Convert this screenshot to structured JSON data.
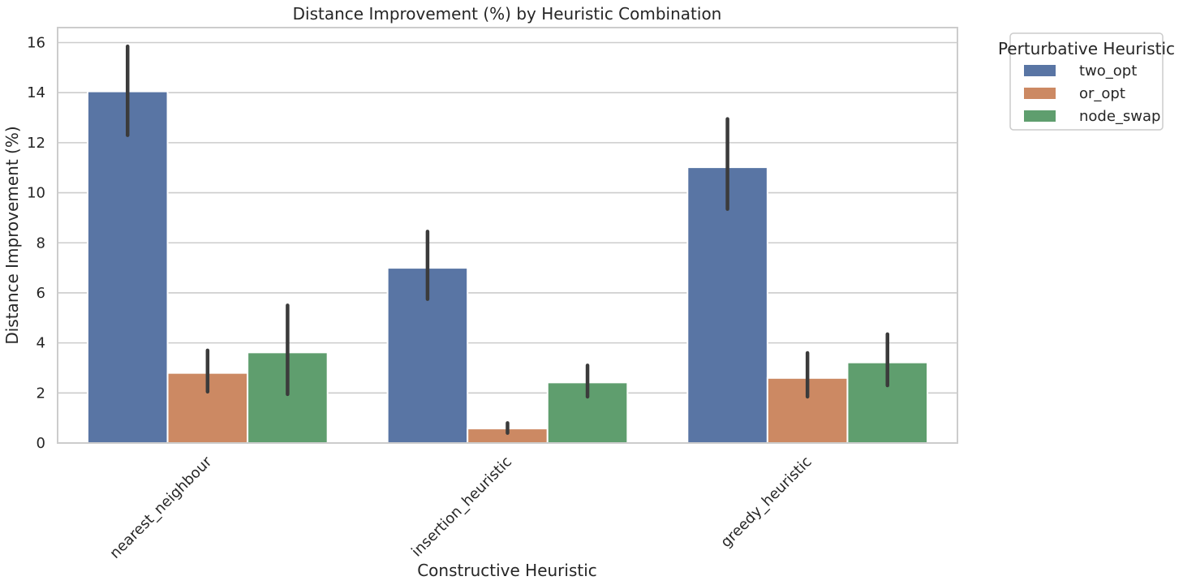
{
  "chart_data": {
    "type": "bar",
    "title": "Distance Improvement (%) by Heuristic Combination",
    "xlabel": "Constructive Heuristic",
    "ylabel": "Distance Improvement (%)",
    "ylim": [
      0,
      16.6
    ],
    "yticks": [
      0,
      2,
      4,
      6,
      8,
      10,
      12,
      14,
      16
    ],
    "grid": true,
    "categories": [
      "nearest_neighbour",
      "insertion_heuristic",
      "greedy_heuristic"
    ],
    "legend": {
      "title": "Perturbative Heuristic",
      "placement": "outside-upper-right"
    },
    "series": [
      {
        "name": "two_opt",
        "color": "#5975a4",
        "values": [
          14.05,
          7.0,
          11.02
        ],
        "ci_low": [
          12.3,
          5.75,
          9.35
        ],
        "ci_high": [
          15.85,
          8.45,
          12.95
        ]
      },
      {
        "name": "or_opt",
        "color": "#cc8963",
        "values": [
          2.8,
          0.58,
          2.6
        ],
        "ci_low": [
          2.05,
          0.4,
          1.85
        ],
        "ci_high": [
          3.7,
          0.8,
          3.6
        ]
      },
      {
        "name": "node_swap",
        "color": "#5f9e6e",
        "values": [
          3.62,
          2.42,
          3.22
        ],
        "ci_low": [
          1.95,
          1.85,
          2.3
        ],
        "ci_high": [
          5.5,
          3.1,
          4.35
        ]
      }
    ]
  }
}
